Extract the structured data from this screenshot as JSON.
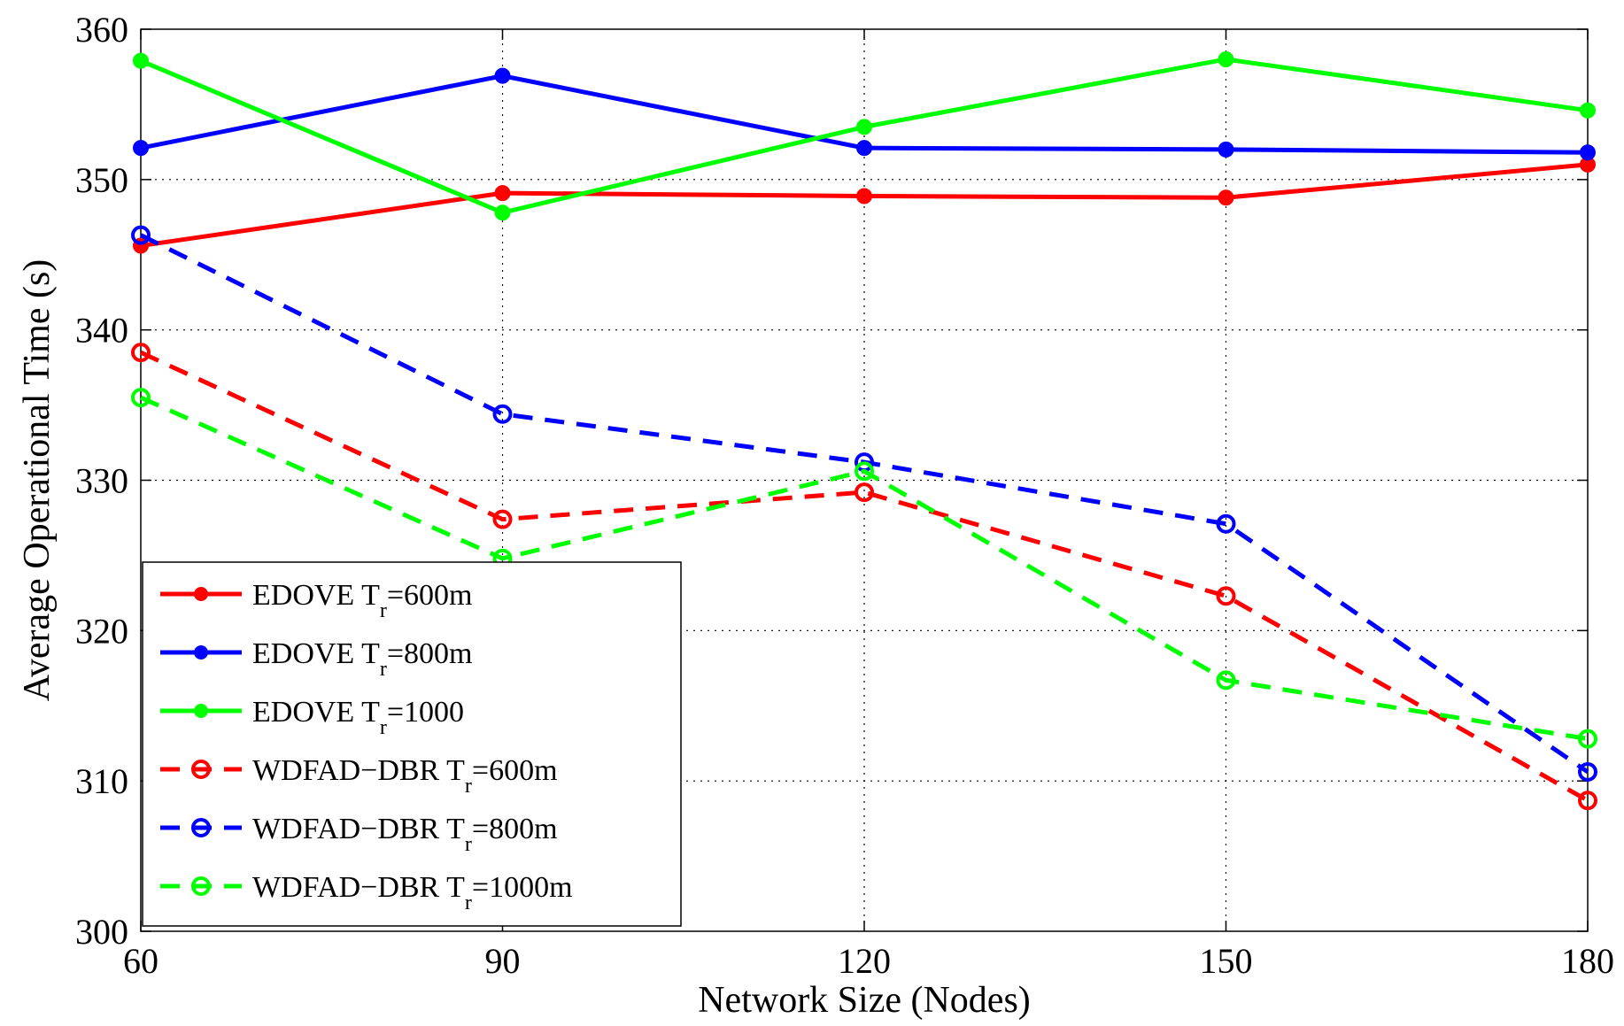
{
  "chart_data": {
    "type": "line",
    "title": "",
    "xlabel": "Network Size (Nodes)",
    "ylabel": "Average Operational Time (s)",
    "x": [
      60,
      90,
      120,
      150,
      180
    ],
    "xlim": [
      60,
      180
    ],
    "ylim": [
      300,
      360
    ],
    "xticks": [
      60,
      90,
      120,
      150,
      180
    ],
    "yticks": [
      300,
      310,
      320,
      330,
      340,
      350,
      360
    ],
    "grid": true,
    "legend_position": "bottom-left",
    "series": [
      {
        "name": "EDOVE",
        "tr_value": "600m",
        "color": "#ff0000",
        "style": "solid",
        "marker": "filled-circle",
        "values": [
          345.6,
          349.1,
          348.9,
          348.8,
          351.0
        ]
      },
      {
        "name": "EDOVE",
        "tr_value": "800m",
        "color": "#0000ff",
        "style": "solid",
        "marker": "filled-circle",
        "values": [
          352.1,
          356.9,
          352.1,
          352.0,
          351.8
        ]
      },
      {
        "name": "EDOVE",
        "tr_value": "1000",
        "color": "#00ff00",
        "style": "solid",
        "marker": "filled-circle",
        "values": [
          357.9,
          347.8,
          353.5,
          358.0,
          354.6
        ]
      },
      {
        "name": "WDFAD−DBR",
        "tr_value": "600m",
        "color": "#ff0000",
        "style": "dashed",
        "marker": "open-circle",
        "values": [
          338.5,
          327.4,
          329.2,
          322.3,
          308.7
        ]
      },
      {
        "name": "WDFAD−DBR",
        "tr_value": "800m",
        "color": "#0000ff",
        "style": "dashed",
        "marker": "open-circle",
        "values": [
          346.3,
          334.4,
          331.2,
          327.1,
          310.6
        ]
      },
      {
        "name": "WDFAD−DBR",
        "tr_value": "1000m",
        "color": "#00ff00",
        "style": "dashed",
        "marker": "open-circle",
        "values": [
          335.5,
          324.8,
          330.6,
          316.7,
          312.8
        ]
      }
    ],
    "legend_symbol": "T",
    "legend_subscript": "r"
  }
}
